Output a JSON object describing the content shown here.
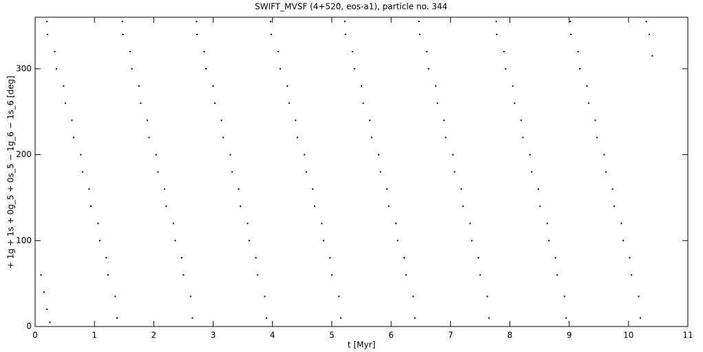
{
  "chart_data": {
    "type": "scatter",
    "title": "SWIFT_MVSF (4+520, eos-a1), particle no. 344",
    "x_label": "t [Myr]",
    "y_label": "+ 1g + 1s + 0g_5 + 0s_5 − 1g_6 − 1s_6 [deg]",
    "color": "#000000",
    "xlim": [
      0,
      11
    ],
    "xticks": [
      0,
      1,
      2,
      3,
      4,
      5,
      6,
      7,
      8,
      9,
      10,
      11
    ],
    "ylim": [
      0,
      360
    ],
    "yticks": [
      0,
      100,
      200,
      300
    ],
    "x": [
      0.1,
      0.15,
      0.2,
      0.25,
      0.2,
      0.21,
      0.33,
      0.36,
      0.48,
      0.51,
      0.62,
      0.65,
      0.77,
      0.8,
      0.91,
      0.94,
      1.06,
      1.09,
      1.2,
      1.23,
      1.35,
      1.38,
      1.47,
      1.48,
      1.6,
      1.63,
      1.75,
      1.78,
      1.89,
      1.92,
      2.04,
      2.07,
      2.18,
      2.21,
      2.33,
      2.36,
      2.47,
      2.5,
      2.62,
      2.65,
      2.72,
      2.73,
      2.85,
      2.88,
      3,
      3.03,
      3.14,
      3.17,
      3.29,
      3.32,
      3.43,
      3.46,
      3.58,
      3.61,
      3.72,
      3.75,
      3.87,
      3.9,
      3.97,
      3.98,
      4.1,
      4.13,
      4.25,
      4.28,
      4.39,
      4.42,
      4.54,
      4.57,
      4.68,
      4.71,
      4.83,
      4.86,
      4.97,
      5,
      5.12,
      5.15,
      5.22,
      5.23,
      5.35,
      5.38,
      5.5,
      5.53,
      5.64,
      5.67,
      5.79,
      5.82,
      5.93,
      5.96,
      6.08,
      6.11,
      6.22,
      6.25,
      6.37,
      6.4,
      6.47,
      6.48,
      6.6,
      6.63,
      6.75,
      6.78,
      6.89,
      6.92,
      7.04,
      7.07,
      7.18,
      7.21,
      7.33,
      7.36,
      7.47,
      7.5,
      7.62,
      7.65,
      7.77,
      7.78,
      7.9,
      7.93,
      8.05,
      8.08,
      8.19,
      8.22,
      8.34,
      8.37,
      8.48,
      8.51,
      8.63,
      8.66,
      8.77,
      8.8,
      8.92,
      8.95,
      9.02,
      9.03,
      9.15,
      9.18,
      9.3,
      9.33,
      9.44,
      9.47,
      9.59,
      9.62,
      9.73,
      9.76,
      9.88,
      9.91,
      10.02,
      10.05,
      10.17,
      10.2,
      10.3,
      10.35,
      10.4
    ],
    "values": [
      60,
      40,
      20,
      5,
      355,
      340,
      320,
      300,
      280,
      260,
      240,
      220,
      200,
      180,
      160,
      140,
      120,
      100,
      80,
      60,
      35,
      10,
      355,
      340,
      320,
      300,
      280,
      260,
      240,
      220,
      200,
      180,
      160,
      140,
      120,
      100,
      80,
      60,
      35,
      10,
      355,
      340,
      320,
      300,
      280,
      260,
      240,
      220,
      200,
      180,
      160,
      140,
      120,
      100,
      80,
      60,
      35,
      10,
      355,
      340,
      320,
      300,
      280,
      260,
      240,
      220,
      200,
      180,
      160,
      140,
      120,
      100,
      80,
      60,
      35,
      10,
      355,
      340,
      320,
      300,
      280,
      260,
      240,
      220,
      200,
      180,
      160,
      140,
      120,
      100,
      80,
      60,
      35,
      10,
      355,
      340,
      320,
      300,
      280,
      260,
      240,
      220,
      200,
      180,
      160,
      140,
      120,
      100,
      80,
      60,
      35,
      10,
      355,
      340,
      320,
      300,
      280,
      260,
      240,
      220,
      200,
      180,
      160,
      140,
      120,
      100,
      80,
      60,
      35,
      10,
      355,
      340,
      320,
      300,
      280,
      260,
      240,
      220,
      200,
      180,
      160,
      140,
      120,
      100,
      80,
      60,
      35,
      10,
      355,
      340,
      315
    ]
  }
}
